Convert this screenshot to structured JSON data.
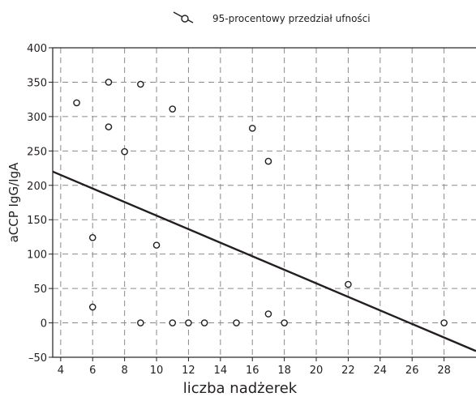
{
  "chart_data": {
    "type": "scatter",
    "title": "",
    "xlabel": "liczba nadżerek",
    "ylabel": "aCCP IgG/IgA",
    "xlim": [
      3.5,
      30
    ],
    "ylim": [
      -50,
      400
    ],
    "x_ticks": [
      4,
      6,
      8,
      10,
      12,
      14,
      16,
      18,
      20,
      22,
      24,
      26,
      28
    ],
    "y_ticks": [
      -50,
      0,
      50,
      100,
      150,
      200,
      250,
      300,
      350,
      400
    ],
    "x_tick_labels": [
      "4",
      "6",
      "8",
      "10",
      "12",
      "14",
      "16",
      "18",
      "20",
      "22",
      "24",
      "26",
      "28"
    ],
    "y_tick_labels": [
      "–50",
      "0",
      "50",
      "100",
      "150",
      "200",
      "250",
      "300",
      "350",
      "400"
    ],
    "grid": true,
    "grid_style": "dashed",
    "legend": {
      "position": "top-center",
      "entries": [
        {
          "label": "95-procentowy przedział ufności"
        }
      ]
    },
    "series": [
      {
        "marker": "open-circle",
        "points": [
          {
            "x": 5,
            "y": 320
          },
          {
            "x": 6,
            "y": 124
          },
          {
            "x": 6,
            "y": 23
          },
          {
            "x": 7,
            "y": 350
          },
          {
            "x": 7,
            "y": 285
          },
          {
            "x": 8,
            "y": 249
          },
          {
            "x": 9,
            "y": 347
          },
          {
            "x": 9,
            "y": 0
          },
          {
            "x": 10,
            "y": 113
          },
          {
            "x": 11,
            "y": 311
          },
          {
            "x": 11,
            "y": 0
          },
          {
            "x": 12,
            "y": 0
          },
          {
            "x": 13,
            "y": 0
          },
          {
            "x": 15,
            "y": 0
          },
          {
            "x": 16,
            "y": 283
          },
          {
            "x": 17,
            "y": 235
          },
          {
            "x": 17,
            "y": 13
          },
          {
            "x": 18,
            "y": 0
          },
          {
            "x": 22,
            "y": 56
          },
          {
            "x": 28,
            "y": 0
          }
        ]
      }
    ],
    "trend_line": {
      "x": [
        3.5,
        30
      ],
      "y": [
        220,
        -41
      ]
    },
    "colors": {
      "ink": "#231f20",
      "grid": "#8a8a8a",
      "background": "#ffffff"
    }
  }
}
